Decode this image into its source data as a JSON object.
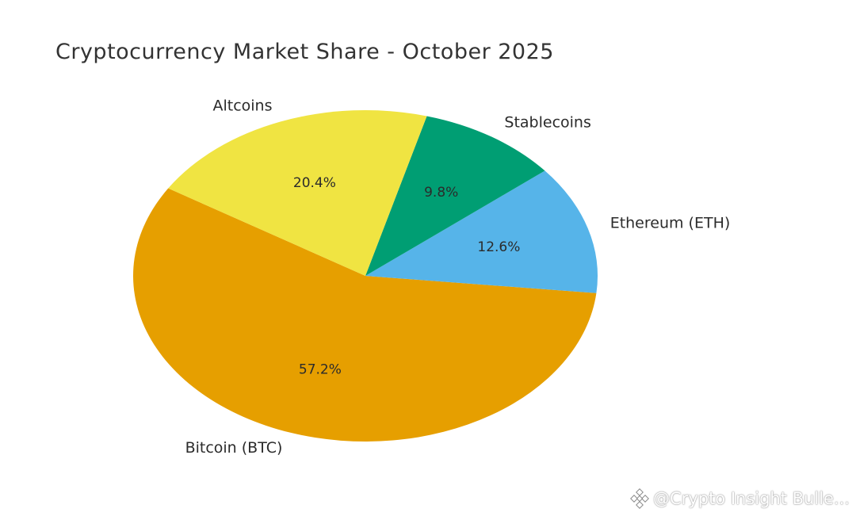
{
  "chart_data": {
    "type": "pie",
    "title": "Cryptocurrency Market Share - October 2025",
    "slices": [
      {
        "label": "Bitcoin (BTC)",
        "value": 57.2,
        "pct_label": "57.2%",
        "color": "#E69F00"
      },
      {
        "label": "Ethereum (ETH)",
        "value": 12.6,
        "pct_label": "12.6%",
        "color": "#56B4E9"
      },
      {
        "label": "Stablecoins",
        "value": 9.8,
        "pct_label": "9.8%",
        "color": "#009E73"
      },
      {
        "label": "Altcoins",
        "value": 20.4,
        "pct_label": "20.4%",
        "color": "#F0E442"
      }
    ]
  },
  "watermark": {
    "text": "@Crypto Insight Bulle..."
  }
}
